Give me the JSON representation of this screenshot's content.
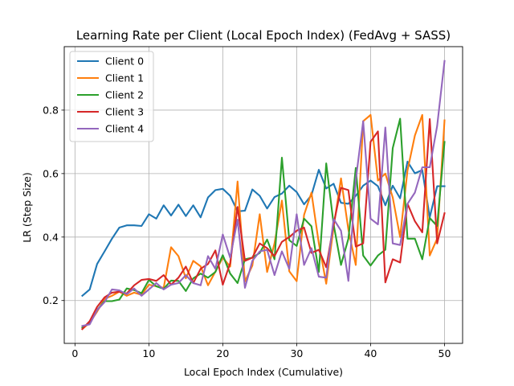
{
  "chart_data": {
    "type": "line",
    "title": "Learning Rate per Client (Local Epoch Index) (FedAvg + SASS)",
    "xlabel": "Local Epoch Index (Cumulative)",
    "ylabel": "LR (Step Size)",
    "xlim": [
      -1.45,
      52.45
    ],
    "ylim": [
      0.065,
      1.0
    ],
    "xticks": [
      0,
      10,
      20,
      30,
      40,
      50
    ],
    "yticks": [
      0.2,
      0.4,
      0.6,
      0.8
    ],
    "xtick_labels": [
      "0",
      "10",
      "20",
      "30",
      "40",
      "50"
    ],
    "ytick_labels": [
      "0.2",
      "0.4",
      "0.6",
      "0.8"
    ],
    "grid": true,
    "legend_position": "top-left",
    "x": [
      1,
      2,
      3,
      4,
      5,
      6,
      7,
      8,
      9,
      10,
      11,
      12,
      13,
      14,
      15,
      16,
      17,
      18,
      19,
      20,
      21,
      22,
      23,
      24,
      25,
      26,
      27,
      28,
      29,
      30,
      31,
      32,
      33,
      34,
      35,
      36,
      37,
      38,
      39,
      40,
      41,
      42,
      43,
      44,
      45,
      46,
      47,
      48,
      49,
      50
    ],
    "series": [
      {
        "name": "Client 0",
        "color": "#1f77b4",
        "values": [
          0.215,
          0.235,
          0.315,
          0.355,
          0.395,
          0.43,
          0.437,
          0.437,
          0.435,
          0.472,
          0.458,
          0.5,
          0.468,
          0.502,
          0.466,
          0.5,
          0.462,
          0.525,
          0.548,
          0.552,
          0.53,
          0.481,
          0.483,
          0.55,
          0.53,
          0.49,
          0.526,
          0.537,
          0.562,
          0.542,
          0.503,
          0.532,
          0.612,
          0.553,
          0.568,
          0.508,
          0.505,
          0.53,
          0.562,
          0.578,
          0.56,
          0.5,
          0.562,
          0.522,
          0.638,
          0.601,
          0.611,
          0.462,
          0.56,
          0.56
        ]
      },
      {
        "name": "Client 1",
        "color": "#ff7f0e",
        "values": [
          0.11,
          0.13,
          0.165,
          0.205,
          0.215,
          0.228,
          0.215,
          0.225,
          0.218,
          0.25,
          0.245,
          0.24,
          0.368,
          0.34,
          0.27,
          0.325,
          0.308,
          0.248,
          0.291,
          0.335,
          0.307,
          0.575,
          0.26,
          0.31,
          0.472,
          0.29,
          0.38,
          0.515,
          0.292,
          0.261,
          0.47,
          0.54,
          0.38,
          0.253,
          0.432,
          0.585,
          0.423,
          0.312,
          0.765,
          0.785,
          0.578,
          0.6,
          0.525,
          0.4,
          0.61,
          0.72,
          0.785,
          0.342,
          0.395,
          0.768
        ]
      },
      {
        "name": "Client 2",
        "color": "#2ca02c",
        "values": [
          0.115,
          0.13,
          0.17,
          0.198,
          0.198,
          0.203,
          0.238,
          0.233,
          0.223,
          0.265,
          0.245,
          0.237,
          0.263,
          0.262,
          0.23,
          0.27,
          0.285,
          0.272,
          0.29,
          0.343,
          0.285,
          0.255,
          0.33,
          0.335,
          0.35,
          0.392,
          0.33,
          0.65,
          0.39,
          0.372,
          0.458,
          0.434,
          0.29,
          0.632,
          0.44,
          0.312,
          0.395,
          0.618,
          0.342,
          0.31,
          0.342,
          0.36,
          0.68,
          0.773,
          0.395,
          0.395,
          0.33,
          0.46,
          0.435,
          0.7
        ]
      },
      {
        "name": "Client 3",
        "color": "#d62728",
        "values": [
          0.11,
          0.135,
          0.18,
          0.21,
          0.225,
          0.228,
          0.222,
          0.248,
          0.265,
          0.268,
          0.262,
          0.28,
          0.25,
          0.272,
          0.307,
          0.255,
          0.3,
          0.315,
          0.358,
          0.25,
          0.318,
          0.495,
          0.325,
          0.335,
          0.38,
          0.365,
          0.34,
          0.385,
          0.4,
          0.42,
          0.43,
          0.35,
          0.36,
          0.305,
          0.44,
          0.555,
          0.548,
          0.37,
          0.38,
          0.7,
          0.733,
          0.257,
          0.33,
          0.32,
          0.505,
          0.45,
          0.415,
          0.772,
          0.38,
          0.475
        ]
      },
      {
        "name": "Client 4",
        "color": "#9467bd",
        "values": [
          0.12,
          0.125,
          0.17,
          0.195,
          0.235,
          0.232,
          0.22,
          0.238,
          0.215,
          0.235,
          0.255,
          0.235,
          0.25,
          0.255,
          0.28,
          0.255,
          0.248,
          0.34,
          0.3,
          0.408,
          0.335,
          0.455,
          0.24,
          0.325,
          0.355,
          0.36,
          0.28,
          0.355,
          0.3,
          0.472,
          0.312,
          0.365,
          0.275,
          0.272,
          0.457,
          0.42,
          0.262,
          0.58,
          0.765,
          0.458,
          0.44,
          0.745,
          0.38,
          0.375,
          0.505,
          0.54,
          0.62,
          0.62,
          0.75,
          0.955
        ]
      }
    ]
  }
}
